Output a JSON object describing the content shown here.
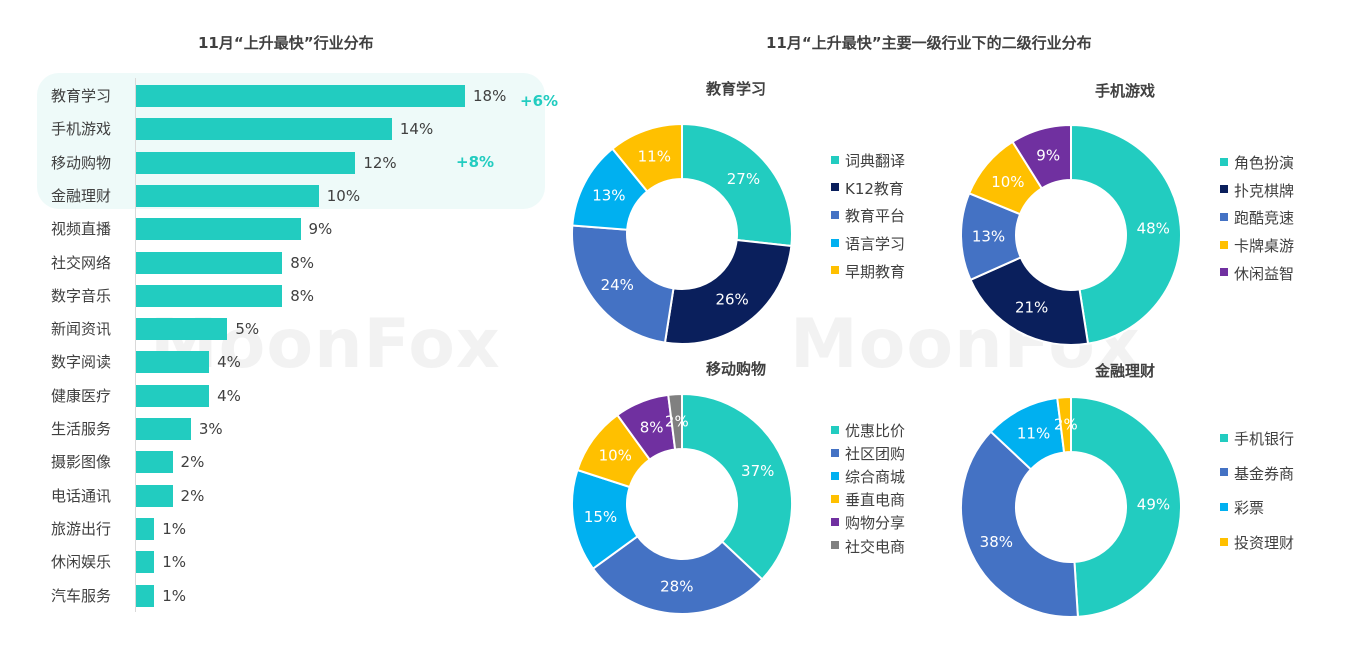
{
  "bar_title": "11月“上升最快”行业分布",
  "pies_title": "11月“上升最快”主要一级行业下的二级行业分布",
  "watermark": "MoonFox",
  "colors": {
    "teal": "#22ccc0",
    "navy": "#0a1f5c",
    "blue": "#4472c4",
    "sky": "#00b0f0",
    "yellow": "#ffc000",
    "purple": "#7030a0",
    "gray": "#808080",
    "highlight": "#eefaf9"
  },
  "chart_data": [
    {
      "type": "bar",
      "orientation": "horizontal",
      "title": "11月“上升最快”行业分布",
      "categories": [
        "教育学习",
        "手机游戏",
        "移动购物",
        "金融理财",
        "视频直播",
        "社交网络",
        "数字音乐",
        "新闻资讯",
        "数字阅读",
        "健康医疗",
        "生活服务",
        "摄影图像",
        "电话通讯",
        "旅游出行",
        "休闲娱乐",
        "汽车服务"
      ],
      "values": [
        18,
        14,
        12,
        10,
        9,
        8,
        8,
        5,
        4,
        4,
        3,
        2,
        2,
        1,
        1,
        1
      ],
      "labels": [
        "18%",
        "14%",
        "12%",
        "10%",
        "9%",
        "8%",
        "8%",
        "5%",
        "4%",
        "4%",
        "3%",
        "2%",
        "2%",
        "1%",
        "1%",
        "1%"
      ],
      "annotations": [
        {
          "category": "教育学习",
          "text": "+6%"
        },
        {
          "category": "移动购物",
          "text": "+8%"
        }
      ],
      "highlighted_categories": [
        "教育学习",
        "手机游戏",
        "移动购物",
        "金融理财"
      ],
      "xlim": [
        0,
        18
      ],
      "grid": false
    },
    {
      "type": "pie",
      "donut": true,
      "title": "教育学习",
      "categories": [
        "词典翻译",
        "K12教育",
        "教育平台",
        "语言学习",
        "早期教育"
      ],
      "values": [
        27,
        26,
        24,
        13,
        11
      ],
      "labels": [
        "27%",
        "26%",
        "24%",
        "13%",
        "11%"
      ],
      "colors": [
        "#22ccc0",
        "#0a1f5c",
        "#4472c4",
        "#00b0f0",
        "#ffc000"
      ],
      "legend_position": "right"
    },
    {
      "type": "pie",
      "donut": true,
      "title": "手机游戏",
      "categories": [
        "角色扮演",
        "扑克棋牌",
        "跑酷竞速",
        "卡牌桌游",
        "休闲益智"
      ],
      "values": [
        48,
        21,
        13,
        10,
        9
      ],
      "labels": [
        "48%",
        "21%",
        "13%",
        "10%",
        "9%"
      ],
      "colors": [
        "#22ccc0",
        "#0a1f5c",
        "#4472c4",
        "#ffc000",
        "#7030a0"
      ],
      "legend_position": "right"
    },
    {
      "type": "pie",
      "donut": true,
      "title": "移动购物",
      "categories": [
        "优惠比价",
        "社区团购",
        "综合商城",
        "垂直电商",
        "购物分享",
        "社交电商"
      ],
      "values": [
        37,
        28,
        15,
        10,
        8,
        2
      ],
      "labels": [
        "37%",
        "28%",
        "15%",
        "10%",
        "8%",
        "2%"
      ],
      "colors": [
        "#22ccc0",
        "#4472c4",
        "#00b0f0",
        "#ffc000",
        "#7030a0",
        "#808080"
      ],
      "legend_position": "right"
    },
    {
      "type": "pie",
      "donut": true,
      "title": "金融理财",
      "categories": [
        "手机银行",
        "基金券商",
        "彩票",
        "投资理财"
      ],
      "values": [
        49,
        38,
        11,
        2
      ],
      "labels": [
        "49%",
        "38%",
        "11%",
        "2%"
      ],
      "colors": [
        "#22ccc0",
        "#4472c4",
        "#00b0f0",
        "#ffc000"
      ],
      "legend_position": "right"
    }
  ]
}
